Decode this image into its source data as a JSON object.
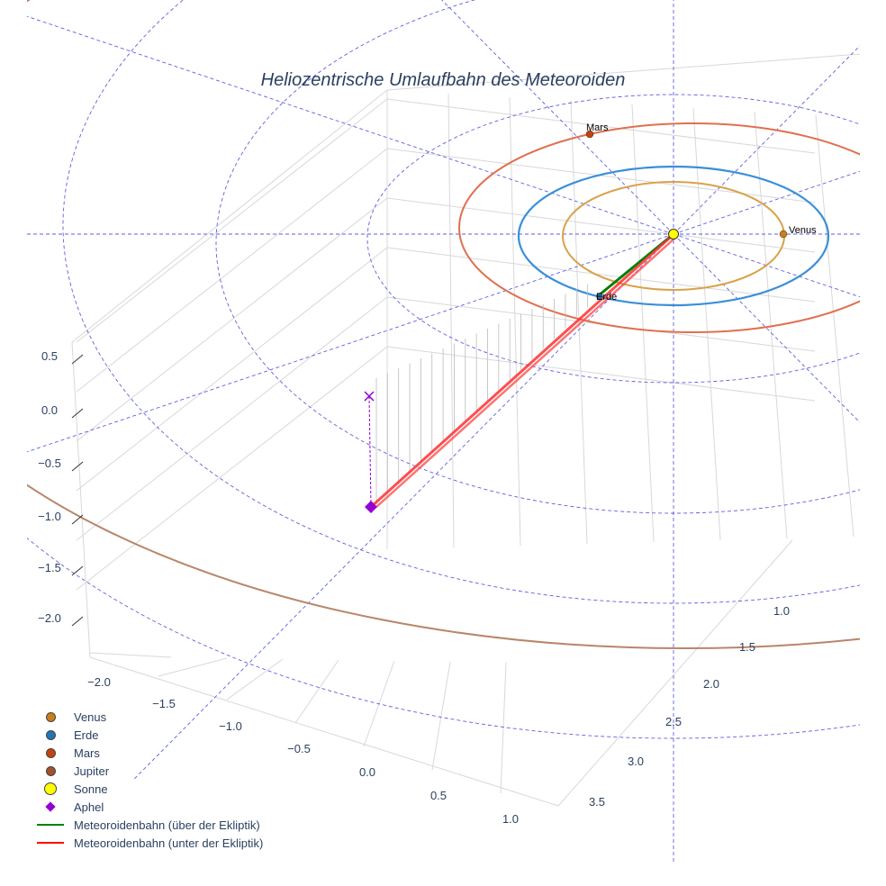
{
  "chart_data": {
    "type": "scatter3d",
    "title": "Heliozentrische Umlaufbahn des Meteoroiden",
    "axes": {
      "x": {
        "ticks": [
          "−2.0",
          "−1.5",
          "−1.0",
          "−0.5",
          "0.0",
          "0.5",
          "1.0"
        ]
      },
      "y": {
        "ticks": [
          "1.0",
          "1.5",
          "2.0",
          "2.5",
          "3.0",
          "3.5"
        ]
      },
      "z": {
        "ticks": [
          "0.5",
          "0.0",
          "−0.5",
          "−1.0",
          "−1.5",
          "−2.0"
        ]
      }
    },
    "annotations": {
      "venus": "Venus",
      "earth": "Erde",
      "mars": "Mars"
    },
    "legend": [
      {
        "name": "Venus",
        "color": "#c87f1a",
        "symbol": "circle"
      },
      {
        "name": "Erde",
        "color": "#1f77b4",
        "symbol": "circle"
      },
      {
        "name": "Mars",
        "color": "#c1440e",
        "symbol": "circle"
      },
      {
        "name": "Jupiter",
        "color": "#a0522d",
        "symbol": "circle"
      },
      {
        "name": "Sonne",
        "color": "#ffff00",
        "symbol": "circle-large"
      },
      {
        "name": "Aphel",
        "color": "#9400d3",
        "symbol": "diamond"
      },
      {
        "name": "Meteoroidenbahn (über der Ekliptik)",
        "color": "#008000",
        "symbol": "line"
      },
      {
        "name": "Meteoroidenbahn (unter der Ekliptik)",
        "color": "#ff0000",
        "symbol": "line"
      }
    ],
    "orbit_colors": {
      "venus": "#d9a24a",
      "earth": "#3a8fd9",
      "mars": "#e07050",
      "jupiter": "#b8866a",
      "grid": "#4444dd"
    }
  }
}
